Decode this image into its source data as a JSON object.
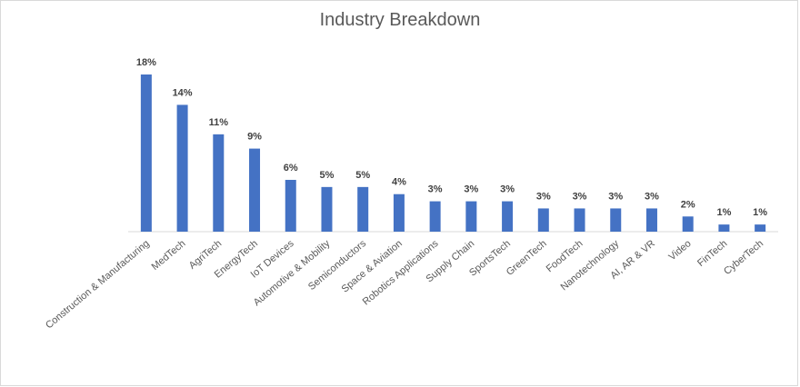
{
  "chart_data": {
    "type": "bar",
    "title": "Industry Breakdown",
    "categories": [
      "Construction & Manufacturing",
      "MedTech",
      "AgriTech",
      "EnergyTech",
      "IoT Devices",
      "Automotive & Mobility",
      "Semiconductors",
      "Space & Aviation",
      "Robotics Applications",
      "Supply Chain",
      "SportsTech",
      "GreenTech",
      "FoodTech",
      "Nanotechnology",
      "AI, AR & VR",
      "Video",
      "FinTech",
      "CyberTech"
    ],
    "values": [
      17.6,
      14.2,
      10.9,
      9.3,
      5.8,
      5,
      5,
      4.2,
      3.4,
      3.4,
      3.4,
      2.6,
      2.6,
      2.6,
      2.6,
      1.7,
      0.8,
      0.8
    ],
    "value_labels": [
      "18%",
      "14%",
      "11%",
      "9%",
      "6%",
      "5%",
      "5%",
      "4%",
      "3%",
      "3%",
      "3%",
      "3%",
      "3%",
      "3%",
      "3%",
      "2%",
      "1%",
      "1%"
    ],
    "color": "#4472c4"
  }
}
